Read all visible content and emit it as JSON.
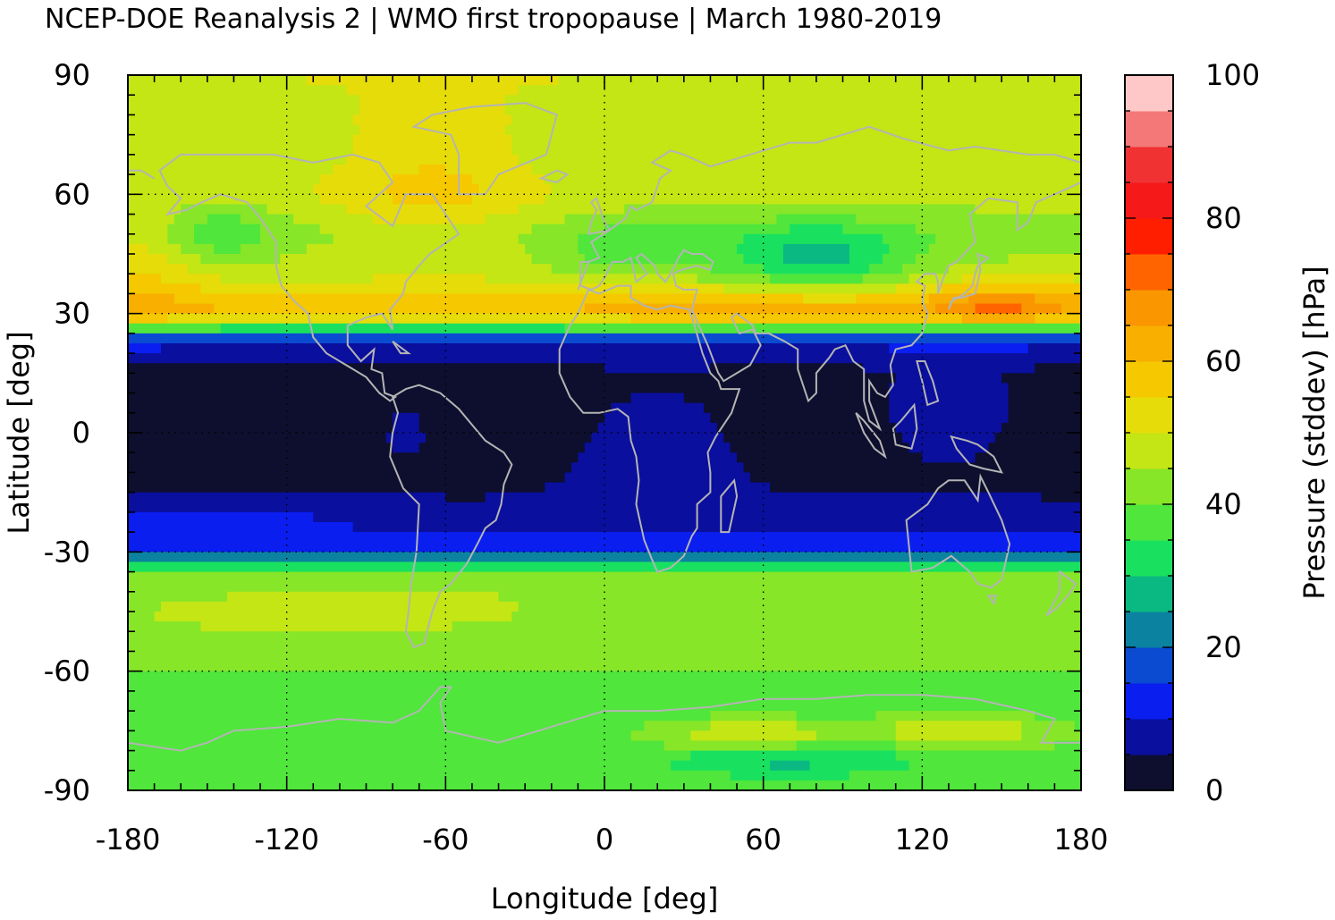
{
  "chart_data": {
    "type": "heatmap",
    "title": "NCEP-DOE Reanalysis 2 | WMO first tropopause | March 1980-2019",
    "xlabel": "Longitude [deg]",
    "ylabel": "Latitude [deg]",
    "xlim": [
      -180,
      180
    ],
    "ylim": [
      -90,
      90
    ],
    "x_ticks": [
      "-180",
      "-120",
      "-60",
      "0",
      "60",
      "120",
      "180"
    ],
    "y_ticks": [
      "-90",
      "-60",
      "-30",
      "0",
      "30",
      "60",
      "90"
    ],
    "grid": true,
    "colorbar": {
      "label": "Pressure (stddev) [hPa]",
      "range": [
        0,
        100
      ],
      "ticks": [
        "0",
        "20",
        "40",
        "60",
        "80",
        "100"
      ],
      "levels": [
        {
          "from": 0,
          "to": 5,
          "color": "#0e0f2e"
        },
        {
          "from": 5,
          "to": 10,
          "color": "#0a0f9e"
        },
        {
          "from": 10,
          "to": 15,
          "color": "#0a1ef0"
        },
        {
          "from": 15,
          "to": 20,
          "color": "#0a4bd2"
        },
        {
          "from": 20,
          "to": 25,
          "color": "#0a82a0"
        },
        {
          "from": 25,
          "to": 30,
          "color": "#0ab982"
        },
        {
          "from": 30,
          "to": 35,
          "color": "#19e15f"
        },
        {
          "from": 35,
          "to": 40,
          "color": "#50e63c"
        },
        {
          "from": 40,
          "to": 45,
          "color": "#87e628"
        },
        {
          "from": 45,
          "to": 50,
          "color": "#c3e614"
        },
        {
          "from": 50,
          "to": 55,
          "color": "#e6dc0a"
        },
        {
          "from": 55,
          "to": 60,
          "color": "#f5c800"
        },
        {
          "from": 60,
          "to": 65,
          "color": "#f8af00"
        },
        {
          "from": 65,
          "to": 70,
          "color": "#fa9600"
        },
        {
          "from": 70,
          "to": 75,
          "color": "#ff6400"
        },
        {
          "from": 75,
          "to": 80,
          "color": "#ff1e00"
        },
        {
          "from": 80,
          "to": 85,
          "color": "#f51919"
        },
        {
          "from": 85,
          "to": 90,
          "color": "#f03232"
        },
        {
          "from": 90,
          "to": 95,
          "color": "#f57878"
        },
        {
          "from": 95,
          "to": 100,
          "color": "#ffc8c8"
        }
      ]
    },
    "zonal_profile": [
      {
        "lat": 90,
        "value": 50
      },
      {
        "lat": 80,
        "value": 48
      },
      {
        "lat": 70,
        "value": 45
      },
      {
        "lat": 60,
        "value": 47
      },
      {
        "lat": 50,
        "value": 42
      },
      {
        "lat": 40,
        "value": 47
      },
      {
        "lat": 34,
        "value": 56
      },
      {
        "lat": 30,
        "value": 60
      },
      {
        "lat": 27,
        "value": 42
      },
      {
        "lat": 25,
        "value": 22
      },
      {
        "lat": 22,
        "value": 10
      },
      {
        "lat": 18,
        "value": 6
      },
      {
        "lat": 15,
        "value": 3
      },
      {
        "lat": 0,
        "value": 2
      },
      {
        "lat": -10,
        "value": 3
      },
      {
        "lat": -20,
        "value": 6
      },
      {
        "lat": -26,
        "value": 10
      },
      {
        "lat": -30,
        "value": 14
      },
      {
        "lat": -33,
        "value": 30
      },
      {
        "lat": -36,
        "value": 40
      },
      {
        "lat": -45,
        "value": 43
      },
      {
        "lat": -55,
        "value": 41
      },
      {
        "lat": -60,
        "value": 40
      },
      {
        "lat": -70,
        "value": 37
      },
      {
        "lat": -80,
        "value": 38
      },
      {
        "lat": -90,
        "value": 36
      }
    ],
    "coastline_color": "#b4b4b4"
  }
}
